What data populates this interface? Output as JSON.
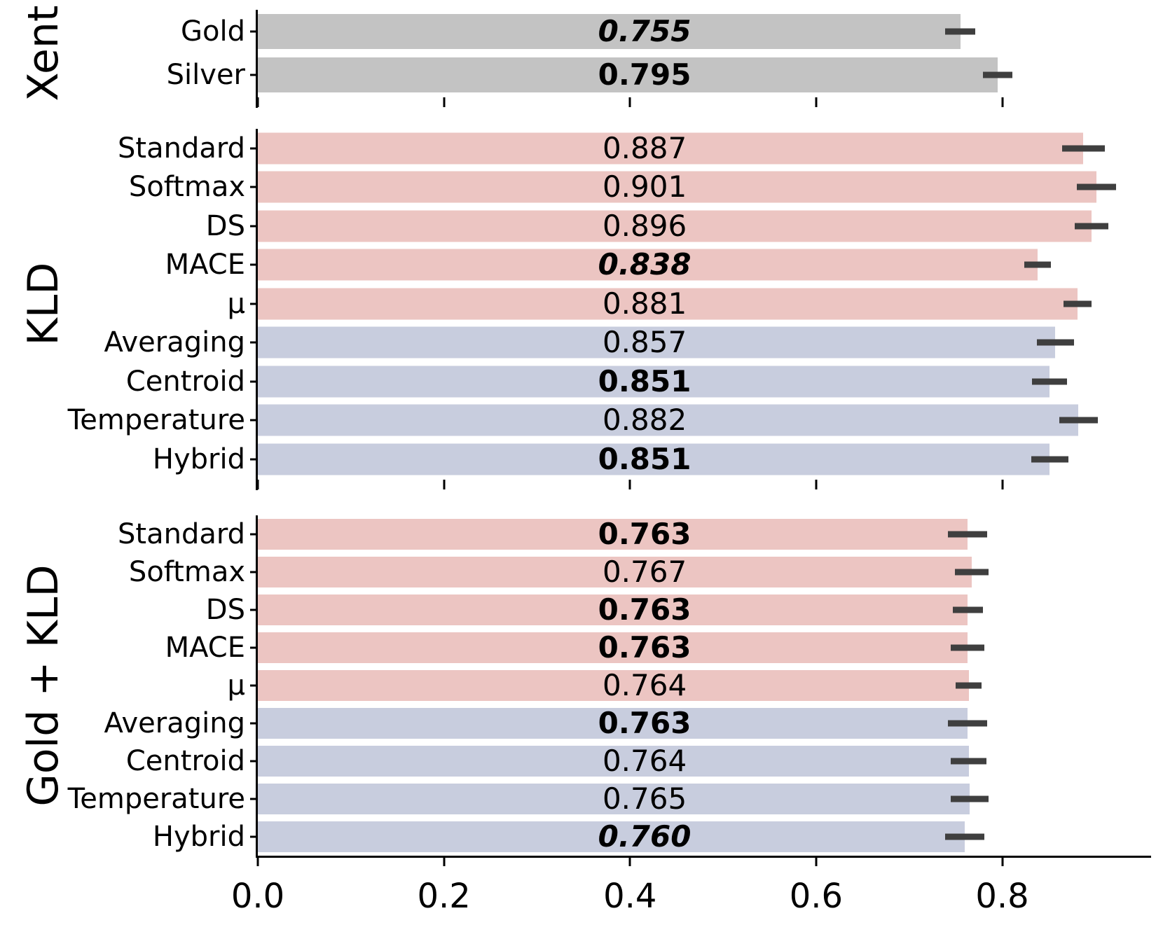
{
  "chart_data": {
    "type": "bar",
    "orientation": "horizontal",
    "title": "",
    "xlabel": "",
    "ylabel_groups": [
      "Xent",
      "KLD",
      "Gold + KLD"
    ],
    "xlim": [
      0,
      0.96
    ],
    "xtick_values": [
      0,
      0.2,
      0.4,
      0.6,
      0.8
    ],
    "xtick_labels": [
      "0.0",
      "0.2",
      "0.4",
      "0.6",
      "0.8"
    ],
    "grid": false,
    "legend": false,
    "value_label_x_fraction": 0.433,
    "colors": {
      "pink": "#ecc5c2",
      "blue": "#c8cdde",
      "gray": "#c3c3c3",
      "error_bar": "#3f3f3f",
      "axis": "#000000"
    },
    "panels": [
      {
        "group": "Xent",
        "rows": [
          {
            "label": "Gold",
            "value": 0.755,
            "display": "0.755",
            "err": 0.016,
            "color_key": "gray",
            "emphasis": "bold-italic"
          },
          {
            "label": "Silver",
            "value": 0.795,
            "display": "0.795",
            "err": 0.016,
            "color_key": "gray",
            "emphasis": "bold"
          }
        ]
      },
      {
        "group": "KLD",
        "rows": [
          {
            "label": "Standard",
            "value": 0.887,
            "display": "0.887",
            "err": 0.023,
            "color_key": "pink",
            "emphasis": "normal"
          },
          {
            "label": "Softmax",
            "value": 0.901,
            "display": "0.901",
            "err": 0.021,
            "color_key": "pink",
            "emphasis": "normal"
          },
          {
            "label": "DS",
            "value": 0.896,
            "display": "0.896",
            "err": 0.018,
            "color_key": "pink",
            "emphasis": "normal"
          },
          {
            "label": "MACE",
            "value": 0.838,
            "display": "0.838",
            "err": 0.014,
            "color_key": "pink",
            "emphasis": "bold-italic"
          },
          {
            "label": "μ",
            "value": 0.881,
            "display": "0.881",
            "err": 0.015,
            "color_key": "pink",
            "emphasis": "normal"
          },
          {
            "label": "Averaging",
            "value": 0.857,
            "display": "0.857",
            "err": 0.02,
            "color_key": "blue",
            "emphasis": "normal"
          },
          {
            "label": "Centroid",
            "value": 0.851,
            "display": "0.851",
            "err": 0.019,
            "color_key": "blue",
            "emphasis": "bold"
          },
          {
            "label": "Temperature",
            "value": 0.882,
            "display": "0.882",
            "err": 0.021,
            "color_key": "blue",
            "emphasis": "normal"
          },
          {
            "label": "Hybrid",
            "value": 0.851,
            "display": "0.851",
            "err": 0.02,
            "color_key": "blue",
            "emphasis": "bold"
          }
        ]
      },
      {
        "group": "Gold + KLD",
        "rows": [
          {
            "label": "Standard",
            "value": 0.763,
            "display": "0.763",
            "err": 0.021,
            "color_key": "pink",
            "emphasis": "bold"
          },
          {
            "label": "Softmax",
            "value": 0.767,
            "display": "0.767",
            "err": 0.018,
            "color_key": "pink",
            "emphasis": "normal"
          },
          {
            "label": "DS",
            "value": 0.763,
            "display": "0.763",
            "err": 0.016,
            "color_key": "pink",
            "emphasis": "bold"
          },
          {
            "label": "MACE",
            "value": 0.763,
            "display": "0.763",
            "err": 0.018,
            "color_key": "pink",
            "emphasis": "bold"
          },
          {
            "label": "μ",
            "value": 0.764,
            "display": "0.764",
            "err": 0.014,
            "color_key": "pink",
            "emphasis": "normal"
          },
          {
            "label": "Averaging",
            "value": 0.763,
            "display": "0.763",
            "err": 0.021,
            "color_key": "blue",
            "emphasis": "bold"
          },
          {
            "label": "Centroid",
            "value": 0.764,
            "display": "0.764",
            "err": 0.019,
            "color_key": "blue",
            "emphasis": "normal"
          },
          {
            "label": "Temperature",
            "value": 0.765,
            "display": "0.765",
            "err": 0.02,
            "color_key": "blue",
            "emphasis": "normal"
          },
          {
            "label": "Hybrid",
            "value": 0.76,
            "display": "0.760",
            "err": 0.021,
            "color_key": "blue",
            "emphasis": "bold-italic"
          }
        ]
      }
    ]
  }
}
